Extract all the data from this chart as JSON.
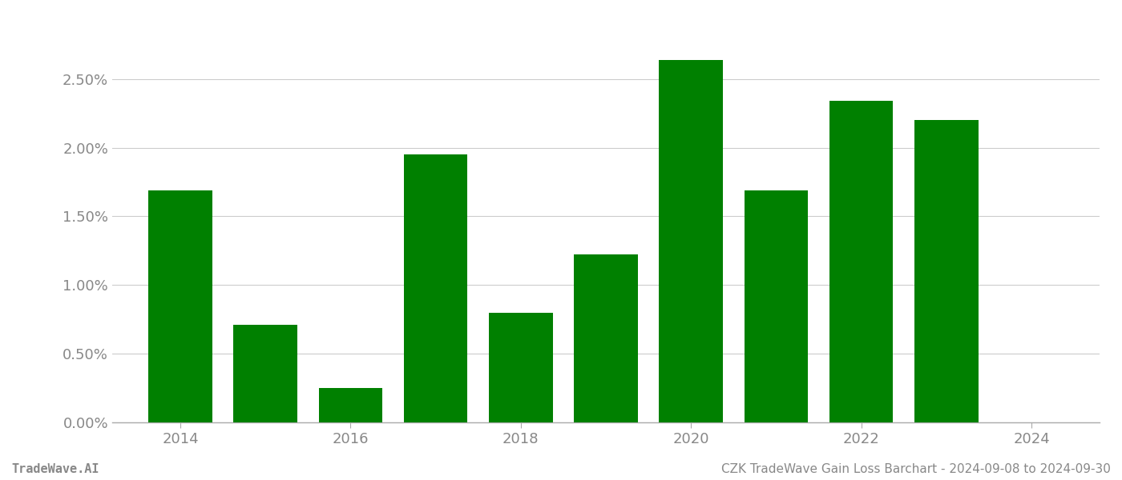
{
  "years": [
    2014,
    2015,
    2016,
    2017,
    2018,
    2019,
    2020,
    2021,
    2022,
    2023
  ],
  "values": [
    0.0169,
    0.0071,
    0.0025,
    0.0195,
    0.008,
    0.0122,
    0.0264,
    0.0169,
    0.0234,
    0.022
  ],
  "bar_color": "#008000",
  "background_color": "#ffffff",
  "grid_color": "#cccccc",
  "axis_color": "#aaaaaa",
  "tick_label_color": "#888888",
  "ylim": [
    0,
    0.029
  ],
  "yticks": [
    0.0,
    0.005,
    0.01,
    0.015,
    0.02,
    0.025
  ],
  "xticks": [
    2014,
    2016,
    2018,
    2020,
    2022,
    2024
  ],
  "xlim": [
    2013.2,
    2024.8
  ],
  "footer_left": "TradeWave.AI",
  "footer_right": "CZK TradeWave Gain Loss Barchart - 2024-09-08 to 2024-09-30",
  "footer_color": "#888888",
  "footer_fontsize": 11,
  "bar_width": 0.75,
  "figsize": [
    14.0,
    6.0
  ],
  "dpi": 100
}
